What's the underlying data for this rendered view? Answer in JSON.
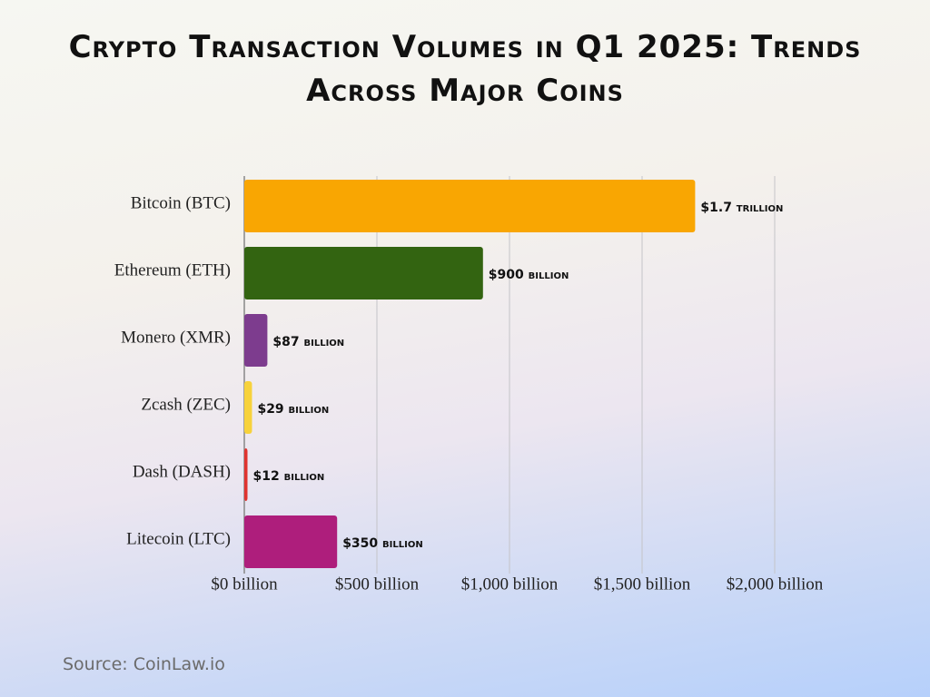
{
  "chart_data": {
    "type": "bar",
    "orientation": "horizontal",
    "title": "Crypto Transaction Volumes in Q1 2025: Trends Across Major Coins",
    "categories": [
      "Bitcoin (BTC)",
      "Ethereum (ETH)",
      "Monero (XMR)",
      "Zcash (ZEC)",
      "Dash (DASH)",
      "Litecoin (LTC)"
    ],
    "values": [
      1700,
      900,
      87,
      29,
      12,
      350
    ],
    "value_labels": [
      "$1.7 trillion",
      "$900 billion",
      "$87 billion",
      "$29 billion",
      "$12 billion",
      "$350 billion"
    ],
    "colors": [
      "#f9a602",
      "#336411",
      "#7d3c8e",
      "#f7d23b",
      "#e0332f",
      "#ae1e7c"
    ],
    "xlim": [
      0,
      2000
    ],
    "xticks": [
      {
        "value": 0,
        "label": "$0 billion"
      },
      {
        "value": 500,
        "label": "$500 billion"
      },
      {
        "value": 1000,
        "label": "$1,000 billion"
      },
      {
        "value": 1500,
        "label": "$1,500 billion"
      },
      {
        "value": 2000,
        "label": "$2,000 billion"
      }
    ],
    "grid": true,
    "source": "Source: CoinLaw.io"
  }
}
